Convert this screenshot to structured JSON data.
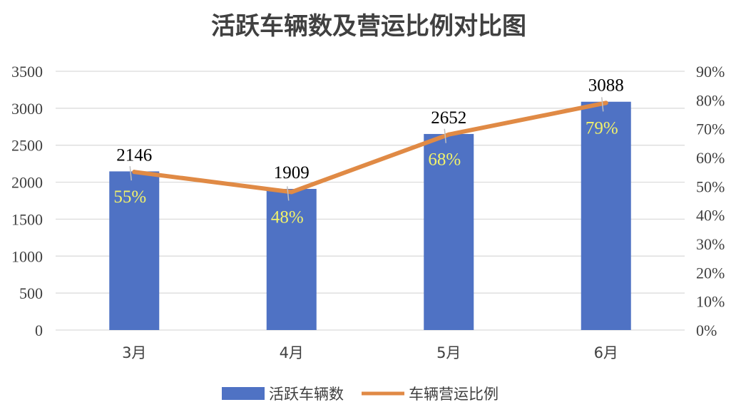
{
  "chart_data": {
    "type": "bar",
    "title": "活跃车辆数及营运比例对比图",
    "categories": [
      "3月",
      "4月",
      "5月",
      "6月"
    ],
    "series": [
      {
        "name": "活跃车辆数",
        "kind": "bar",
        "axis": "left",
        "values": [
          2146,
          1909,
          2652,
          3088
        ],
        "labels": [
          "2146",
          "1909",
          "2652",
          "3088"
        ],
        "color": "#4f72c4"
      },
      {
        "name": "车辆营运比例",
        "kind": "line",
        "axis": "right",
        "values": [
          0.55,
          0.48,
          0.68,
          0.79
        ],
        "labels": [
          "55%",
          "48%",
          "68%",
          "79%"
        ],
        "color": "#e08a45"
      }
    ],
    "y_left": {
      "min": 0,
      "max": 3500,
      "ticks": [
        "0",
        "500",
        "1000",
        "1500",
        "2000",
        "2500",
        "3000",
        "3500"
      ]
    },
    "y_right": {
      "min": 0,
      "max": 0.9,
      "ticks": [
        "0%",
        "10%",
        "20%",
        "30%",
        "40%",
        "50%",
        "60%",
        "70%",
        "80%",
        "90%"
      ]
    },
    "grid": true,
    "legend": "bottom",
    "colors": {
      "line_label": "#f2f26b",
      "grid": "#d9d9d9",
      "text": "#404040"
    }
  }
}
